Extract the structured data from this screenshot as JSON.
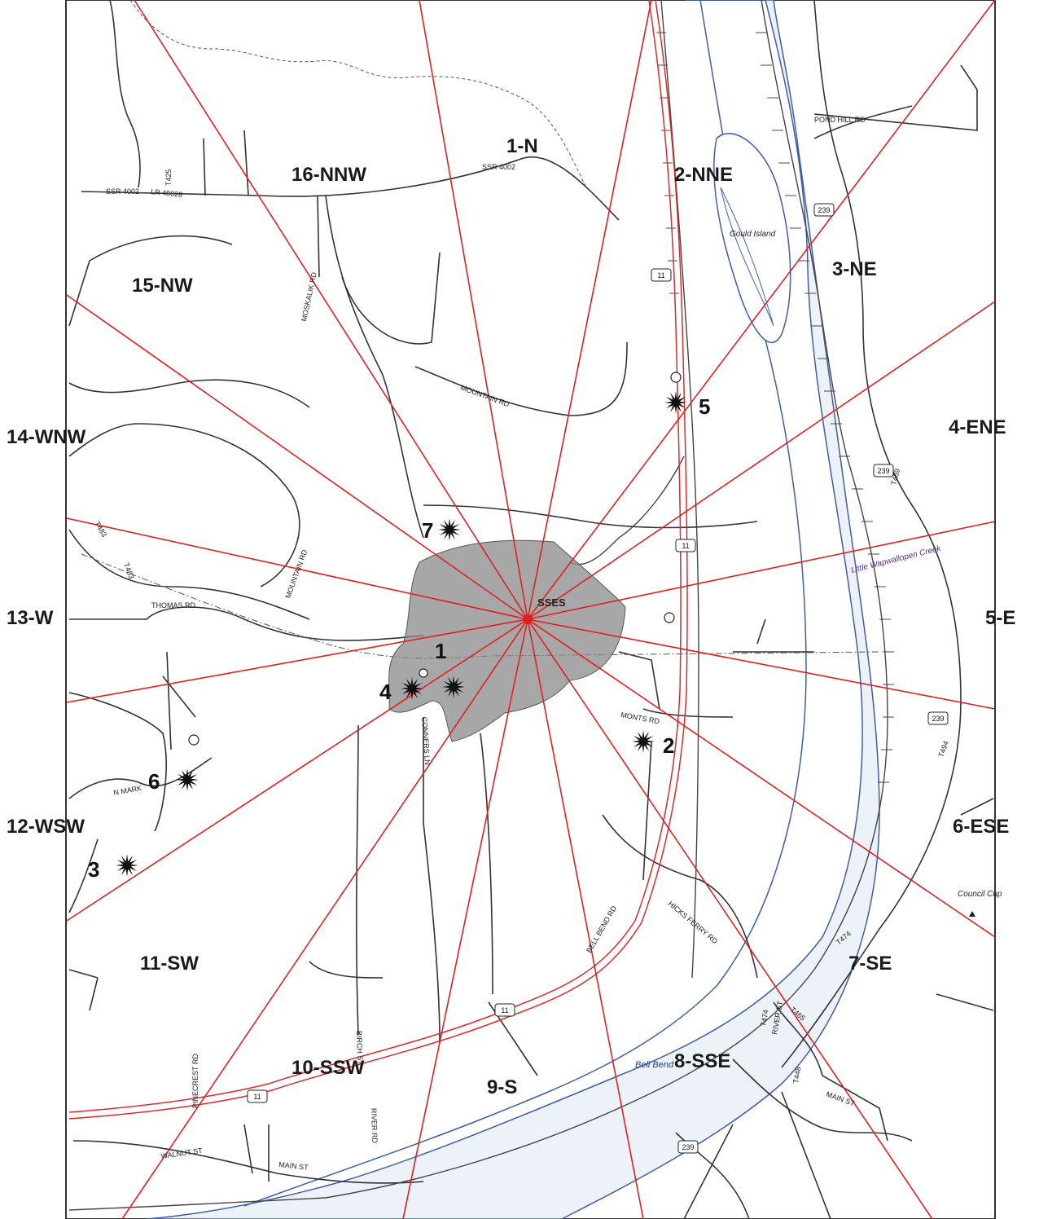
{
  "map": {
    "colors": {
      "sector_line": "#e02020",
      "river_fill": "#edf1f8",
      "river_edge": "#3c5fa8",
      "road": "#333333",
      "highway": "#d92b2b",
      "site_fill": "#8a8a8a"
    },
    "site_label": "SSES",
    "sectors": [
      "1-N",
      "2-NNE",
      "3-NE",
      "4-ENE",
      "5-E",
      "6-ESE",
      "7-SE",
      "8-SSE",
      "9-S",
      "10-SSW",
      "11-SW",
      "12-WSW",
      "13-W",
      "14-WNW",
      "15-NW",
      "16-NNW"
    ],
    "markers": [
      "1",
      "2",
      "3",
      "4",
      "5",
      "6",
      "7"
    ],
    "roads": [
      "POND HILL RD",
      "SSR 4002",
      "SSR 4002",
      "LR 40028",
      "T425",
      "MOSKALIK RD",
      "MOUNTAIN RD",
      "MOUNTAIN RD",
      "T483",
      "T483",
      "THOMAS RD",
      "N MARK",
      "CONNERS LN",
      "MONTS RD",
      "BELL BEND RD",
      "HICKS FERRY RD",
      "T474",
      "T465",
      "T474",
      "RIVER ST",
      "T448",
      "MAIN ST",
      "PINECREST RD",
      "WALNUT ST",
      "MAIN ST",
      "RIVER RD",
      "BIRCH ST",
      "T494",
      "T469"
    ],
    "shields": [
      "239",
      "11",
      "11",
      "239",
      "239",
      "11",
      "11",
      "239"
    ],
    "places": {
      "island": "Gould Island",
      "creek": "Little Wapwallopen Creek",
      "bend": "Bell Bend",
      "cup": "Council Cup"
    }
  }
}
